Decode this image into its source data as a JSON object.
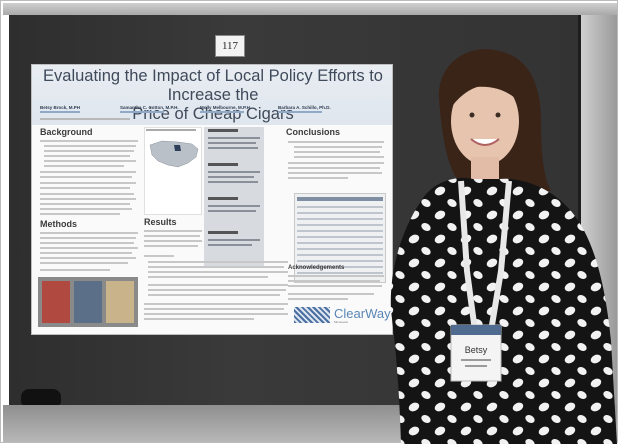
{
  "scene": {
    "poster_number": "117"
  },
  "poster": {
    "title_line1": "Evaluating the Impact of Local Policy Efforts to Increase the",
    "title_line2": "Price of Cheap Cigars",
    "authors": [
      {
        "name": "Betsy Brock, M.PH"
      },
      {
        "name": "Samantha C. Cotton, M.P.H."
      },
      {
        "name": "Molly Melbourne, M.P.H."
      },
      {
        "name": "Barbara A. Schillo, Ph.D."
      }
    ],
    "sections": {
      "background": "Background",
      "methods": "Methods",
      "results": "Results",
      "conclusions": "Conclusions",
      "acknowledgements": "Acknowledgements"
    },
    "logo_text": "ClearWay",
    "logo_superscript": "Minnesota"
  },
  "badge": {
    "name": "Betsy"
  }
}
